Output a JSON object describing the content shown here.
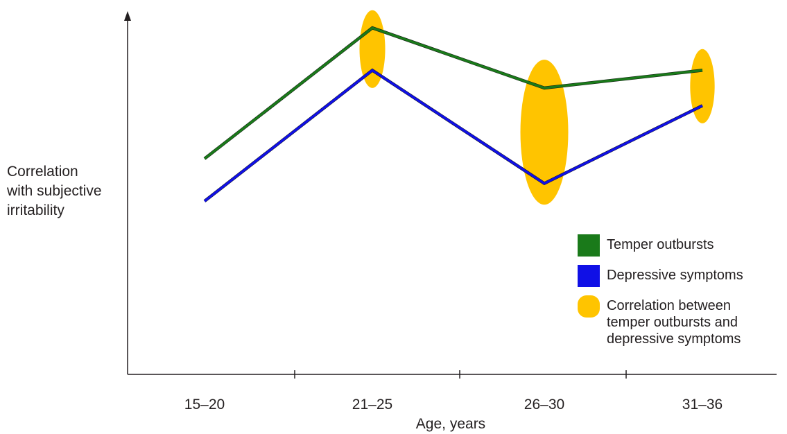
{
  "chart_data": {
    "type": "line",
    "title": "",
    "xlabel": "Age, years",
    "ylabel": [
      "Correlation",
      "with subjective",
      "irritability"
    ],
    "categories": [
      "15–20",
      "21–25",
      "26–30",
      "31–36"
    ],
    "ylim": [
      0,
      1
    ],
    "y_axis_ticks_shown": false,
    "series": [
      {
        "name": "Temper outbursts",
        "color": "#1a7a1a",
        "values": [
          0.61,
          0.98,
          0.81,
          0.86
        ]
      },
      {
        "name": "Depressive symptoms",
        "color": "#1010e6",
        "values": [
          0.49,
          0.86,
          0.54,
          0.76
        ]
      }
    ],
    "correlation_markers": {
      "name": "Correlation between temper outbursts and depressive symptoms",
      "color": "#ffc400",
      "markers": [
        {
          "category": "21–25",
          "low": 0.81,
          "high": 1.03
        },
        {
          "category": "26–30",
          "low": 0.48,
          "high": 0.89
        },
        {
          "category": "31–36",
          "low": 0.71,
          "high": 0.92
        }
      ]
    },
    "grid": false,
    "legend_position": "bottom-right"
  },
  "legend": {
    "items": [
      {
        "label": [
          "Temper outbursts"
        ],
        "color": "#1a7a1a",
        "shape": "square"
      },
      {
        "label": [
          "Depressive symptoms"
        ],
        "color": "#1010e6",
        "shape": "square"
      },
      {
        "label": [
          "Correlation between",
          "temper outbursts and",
          "depressive symptoms"
        ],
        "color": "#ffc400",
        "shape": "ellipse"
      }
    ]
  }
}
